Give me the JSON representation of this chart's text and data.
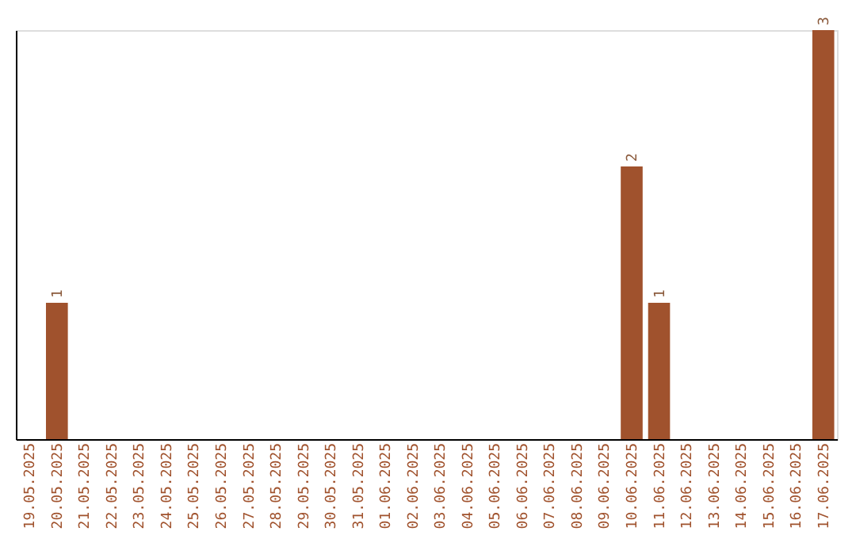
{
  "chart_data": {
    "type": "bar",
    "categories": [
      "19.05.2025",
      "20.05.2025",
      "21.05.2025",
      "22.05.2025",
      "23.05.2025",
      "24.05.2025",
      "25.05.2025",
      "26.05.2025",
      "27.05.2025",
      "28.05.2025",
      "29.05.2025",
      "30.05.2025",
      "31.05.2025",
      "01.06.2025",
      "02.06.2025",
      "03.06.2025",
      "04.06.2025",
      "05.06.2025",
      "06.06.2025",
      "07.06.2025",
      "08.06.2025",
      "09.06.2025",
      "10.06.2025",
      "11.06.2025",
      "12.06.2025",
      "13.06.2025",
      "14.06.2025",
      "15.06.2025",
      "16.06.2025",
      "17.06.2025"
    ],
    "values": [
      0,
      1,
      0,
      0,
      0,
      0,
      0,
      0,
      0,
      0,
      0,
      0,
      0,
      0,
      0,
      0,
      0,
      0,
      0,
      0,
      0,
      0,
      2,
      1,
      0,
      0,
      0,
      0,
      0,
      3
    ],
    "value_labels": [
      null,
      "1",
      null,
      null,
      null,
      null,
      null,
      null,
      null,
      null,
      null,
      null,
      null,
      null,
      null,
      null,
      null,
      null,
      null,
      null,
      null,
      null,
      "2",
      "1",
      null,
      null,
      null,
      null,
      null,
      "3"
    ],
    "color": "#a0522d",
    "tick_labels": "x",
    "grid": false
  }
}
